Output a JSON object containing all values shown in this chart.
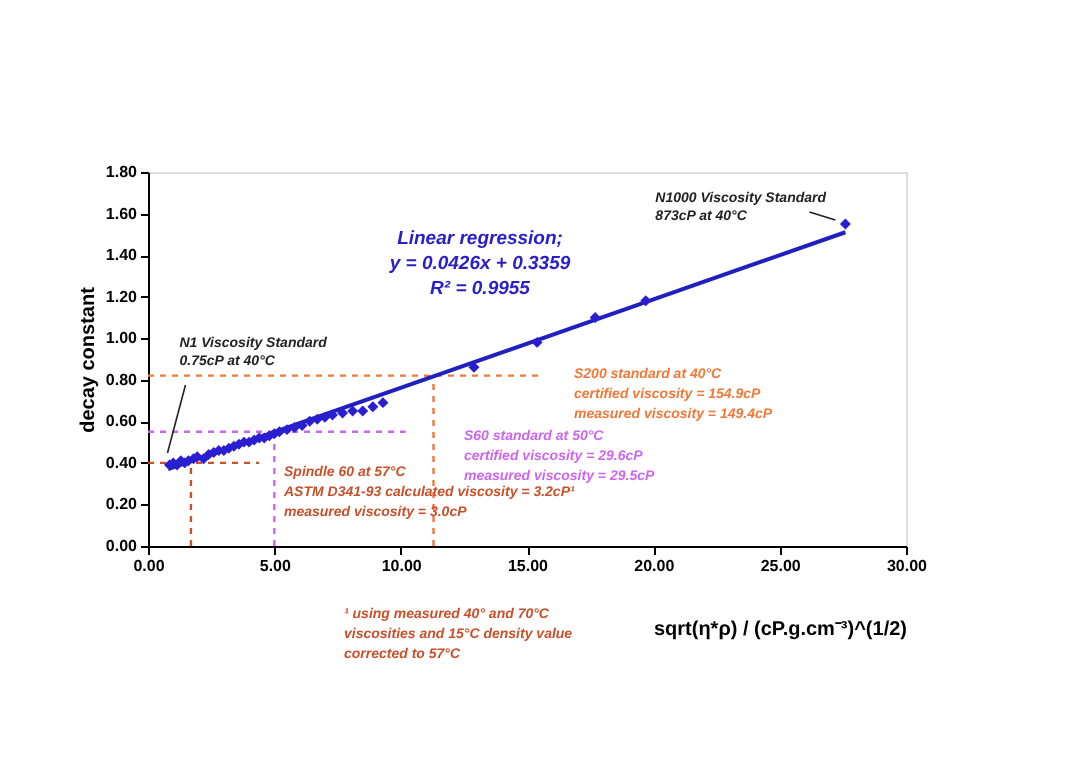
{
  "chart_data": {
    "type": "scatter",
    "xlabel": "sqrt(η*ρ) / (cP.g.cm⁻³)^(1/2)",
    "ylabel": "decay constant",
    "xlim": [
      0,
      30
    ],
    "ylim": [
      0,
      1.8
    ],
    "xticks": [
      {
        "value": 0,
        "label": "0.00"
      },
      {
        "value": 5,
        "label": "5.00"
      },
      {
        "value": 10,
        "label": "10.00"
      },
      {
        "value": 15,
        "label": "15.00"
      },
      {
        "value": 20,
        "label": "20.00"
      },
      {
        "value": 25,
        "label": "25.00"
      },
      {
        "value": 30,
        "label": "30.00"
      }
    ],
    "yticks": [
      {
        "value": 0,
        "label": "0.00"
      },
      {
        "value": 0.2,
        "label": "0.20"
      },
      {
        "value": 0.4,
        "label": "0.40"
      },
      {
        "value": 0.6,
        "label": "0.60"
      },
      {
        "value": 0.8,
        "label": "0.80"
      },
      {
        "value": 1.0,
        "label": "1.00"
      },
      {
        "value": 1.2,
        "label": "1.20"
      },
      {
        "value": 1.4,
        "label": "1.40"
      },
      {
        "value": 1.6,
        "label": "1.60"
      },
      {
        "value": 1.8,
        "label": "1.80"
      }
    ],
    "grid": false,
    "series": [
      {
        "type": "line",
        "line_style": "dashed",
        "marker": "none",
        "color": "#f07838",
        "x": [
          0,
          15.5
        ],
        "values": [
          0.82,
          0.82
        ]
      },
      {
        "type": "line",
        "line_style": "dashed",
        "marker": "none",
        "color": "#f07838",
        "x": [
          11.3,
          11.3
        ],
        "values": [
          0,
          0.82
        ]
      },
      {
        "type": "line",
        "line_style": "dashed",
        "marker": "none",
        "color": "#cc66ee",
        "x": [
          0,
          10.2
        ],
        "values": [
          0.55,
          0.55
        ]
      },
      {
        "type": "line",
        "line_style": "dashed",
        "marker": "none",
        "color": "#cc66ee",
        "x": [
          5.0,
          5.0
        ],
        "values": [
          0,
          0.55
        ]
      },
      {
        "type": "line",
        "line_style": "dashed",
        "marker": "none",
        "color": "#c8502a",
        "x": [
          0,
          4.4
        ],
        "values": [
          0.4,
          0.4
        ]
      },
      {
        "type": "line",
        "line_style": "dashed",
        "marker": "none",
        "color": "#c8502a",
        "x": [
          1.7,
          1.7
        ],
        "values": [
          0,
          0.4
        ]
      },
      {
        "type": "line",
        "line_style": "solid",
        "marker": "none",
        "color": "#2020c0",
        "x": [
          0.8,
          27.6
        ],
        "values": [
          0.37,
          1.51
        ]
      },
      {
        "marker": "diamond",
        "color": "#2a1fd0",
        "x": [
          0.85,
          1.0,
          1.15,
          1.3,
          1.45,
          1.6,
          1.8,
          1.95,
          2.2,
          2.4,
          2.6,
          2.8,
          3.0,
          3.2,
          3.4,
          3.6,
          3.8,
          4.0,
          4.2,
          4.4,
          4.6,
          4.8,
          5.0,
          5.2,
          5.5,
          5.8,
          6.1,
          6.4,
          6.7,
          7.0,
          7.3,
          7.7,
          8.1,
          8.5,
          8.9,
          9.3,
          12.9,
          15.4,
          17.7,
          19.7,
          27.6
        ],
        "values": [
          0.39,
          0.4,
          0.39,
          0.41,
          0.4,
          0.41,
          0.42,
          0.43,
          0.42,
          0.44,
          0.45,
          0.46,
          0.46,
          0.47,
          0.48,
          0.49,
          0.5,
          0.5,
          0.51,
          0.52,
          0.52,
          0.53,
          0.54,
          0.55,
          0.56,
          0.57,
          0.58,
          0.6,
          0.61,
          0.62,
          0.63,
          0.64,
          0.65,
          0.65,
          0.67,
          0.69,
          0.86,
          0.98,
          1.1,
          1.18,
          1.55
        ]
      }
    ],
    "annotations": [
      {
        "text": "N1 Viscosity Standard\n0.75cP at 40°C",
        "x": 0.85,
        "y": 0.39
      },
      {
        "text": "N1000 Viscosity Standard\n873cP at 40°C",
        "x": 27.6,
        "y": 1.55
      },
      "Linear regression;\ny = 0.0426x + 0.3359\nR² = 0.9955",
      "S200 standard at 40°C\ncertified viscosity = 154.9cP\nmeasured viscosity = 149.4cP",
      "S60 standard at 50°C\ncertified viscosity = 29.6cP\nmeasured viscosity = 29.5cP",
      "Spindle 60 at 57°C\nASTM D341-93 calculated viscosity = 3.2cP¹\nmeasured viscosity = 3.0cP",
      "¹ using measured 40° and 70°C\nviscosities and 15°C density value\ncorrected to 57°C"
    ]
  }
}
